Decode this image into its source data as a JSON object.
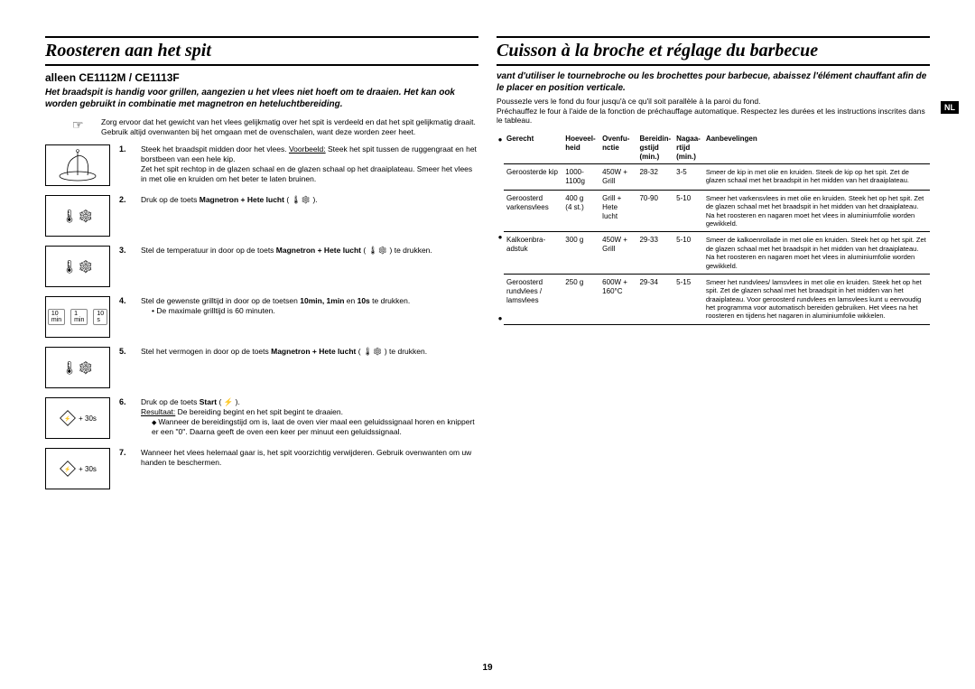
{
  "page_number": "19",
  "lang_tab": "NL",
  "left": {
    "title": "Roosteren aan het spit",
    "subtitle": "alleen CE1112M / CE1113F",
    "intro": "Het braadspit is handig voor grillen, aangezien u het vlees niet hoeft om te draaien. Het kan ook worden gebruikt in combinatie met magnetron en heteluchtbereiding.",
    "note": "Zorg ervoor dat het gewicht van het vlees gelijkmatig over het spit is verdeeld en dat het spit gelijkmatig draait.\nGebruik altijd ovenwanten bij het omgaan met de ovenschalen, want deze worden zeer heet.",
    "steps": [
      {
        "num": "1.",
        "text": "Steek het braadspit midden door het vlees.\n",
        "extra": "<span class='u'>Voorbeeld:</span> Steek het spit tussen de ruggengraat en het borstbeen van een hele kip.\nZet het spit rechtop in de glazen schaal en de glazen schaal op het draaiplateau. Smeer het vlees in met olie en kruiden om het beter te laten bruinen."
      },
      {
        "num": "2.",
        "text": "Druk op de toets <b>Magnetron + Hete lucht</b> ( 🌡❄ )."
      },
      {
        "num": "3.",
        "text": "Stel de temperatuur in door op de toets <b>Magnetron + Hete lucht</b> ( 🌡❄ )  te drukken."
      },
      {
        "num": "4.",
        "text": "Stel de gewenste grilltijd in door op de toetsen <b>10min, 1min</b> en <b>10s</b> te drukken.",
        "bullet": "De maximale grilltijd is 60 minuten."
      },
      {
        "num": "5.",
        "text": "Stel het vermogen in door op de toets <b>Magnetron + Hete lucht</b> ( 🌡❄ ) te drukken."
      },
      {
        "num": "6.",
        "text": "Druk op de toets <b>Start</b> ( ⚡ ).",
        "result_label": "Resultaat:",
        "result": "De bereiding begint en het spit begint te draaien.",
        "arrow": "Wanneer de bereidingstijd om is, laat de oven vier maal een geluidssignaal horen en knippert er een \"0\". Daarna geeft de oven een keer per minuut een geluidssignaal."
      },
      {
        "num": "7.",
        "text": "Wanneer het vlees helemaal gaar is, het spit voorzichtig verwijderen. Gebruik ovenwanten om uw handen te beschermen."
      }
    ]
  },
  "right": {
    "title": "Cuisson à la broche et réglage du barbecue",
    "intro": "vant d'utiliser le tournebroche ou les brochettes pour barbecue, abaissez l'élément chauffant afin de le placer en position verticale.",
    "sub": "Poussezle vers le fond du four jusqu'à ce qu'il soit parallèle à la paroi du fond.\nPréchauffez le four à l'aide de la fonction de préchauffage automatique. Respectez les durées et les instructions inscrites dans le tableau.",
    "headers": [
      "Gerecht",
      "Hoeveel-\nheid",
      "Ovenfu-\nnctie",
      "Bereidin-\ngstijd\n(min.)",
      "Nagaa-\nrtijd\n(min.)",
      "Aanbevelingen"
    ],
    "rows": [
      {
        "dish": "Geroosterde kip",
        "qty": "1000-1100g",
        "func": "450W + Grill",
        "cook": "28-32",
        "rest": "3-5",
        "rec": "Smeer de kip in met olie en kruiden. Steek de kip op het spit. Zet de glazen schaal met het braadspit in het midden van het draaiplateau."
      },
      {
        "dish": "Geroosterd varkensvlees",
        "qty": "400 g\n(4 st.)",
        "func": "Grill + Hete lucht",
        "cook": "70-90",
        "rest": "5-10",
        "rec": "Smeer het varkensvlees in met olie en kruiden. Steek het op het spit. Zet de glazen schaal met het braadspit in het midden van het draaiplateau. Na het roosteren en nagaren moet het vlees in aluminiumfolie worden gewikkeld."
      },
      {
        "dish": "Kalkoenbra-adstuk",
        "qty": "300 g",
        "func": "450W + Grill",
        "cook": "29-33",
        "rest": "5-10",
        "rec": "Smeer de kalkoenrollade in met olie en kruiden. Steek het op het spit. Zet de glazen schaal met het braadspit in het midden van het draaiplateau. Na het roosteren en nagaren moet het vlees in aluminiumfolie worden gewikkeld."
      },
      {
        "dish": "Geroosterd rundvlees / lamsvlees",
        "qty": "250 g",
        "func": "600W + 160°C",
        "cook": "29-34",
        "rest": "5-15",
        "rec": "Smeer het rundvlees/ lamsvlees in met olie en kruiden. Steek het op het spit. Zet de glazen schaal met het braadspit in het midden van het draaiplateau. Voor geroosterd rundvlees en lamsvlees kunt u eenvoudig het programma voor automatisch bereiden gebruiken. Het vlees na het roosteren en tijdens het nagaren in aluminiumfolie wikkelen."
      }
    ]
  }
}
